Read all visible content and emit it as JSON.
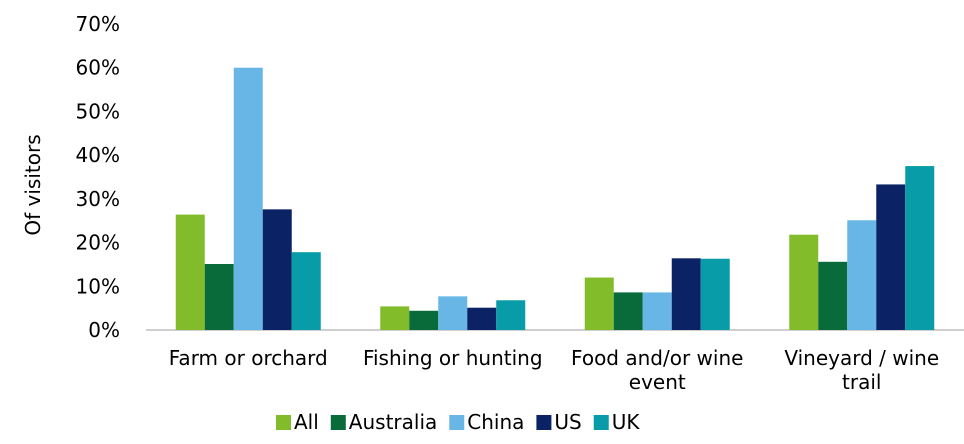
{
  "chart_data": {
    "type": "bar",
    "title": "",
    "xlabel": "",
    "ylabel": "Of visitors",
    "ylim": [
      0,
      70
    ],
    "y_ticks": [
      "0%",
      "10%",
      "20%",
      "30%",
      "40%",
      "50%",
      "60%",
      "70%"
    ],
    "categories": [
      [
        "Farm or orchard"
      ],
      [
        "Fishing or hunting"
      ],
      [
        "Food and/or wine",
        "event"
      ],
      [
        "Vineyard / wine",
        "trail"
      ]
    ],
    "series": [
      {
        "name": "All",
        "color": "#82BC2B",
        "values": [
          26.4,
          5.4,
          12.0,
          21.8
        ]
      },
      {
        "name": "Australia",
        "color": "#0A6B3A",
        "values": [
          15.1,
          4.4,
          8.6,
          15.6
        ]
      },
      {
        "name": "China",
        "color": "#68B6E6",
        "values": [
          60.0,
          7.7,
          8.6,
          25.1
        ]
      },
      {
        "name": "US",
        "color": "#0B2364",
        "values": [
          27.6,
          5.1,
          16.4,
          33.3
        ]
      },
      {
        "name": "UK",
        "color": "#079CA7",
        "values": [
          17.8,
          6.8,
          16.3,
          37.5
        ]
      }
    ],
    "grid": false,
    "legend_position": "bottom"
  }
}
